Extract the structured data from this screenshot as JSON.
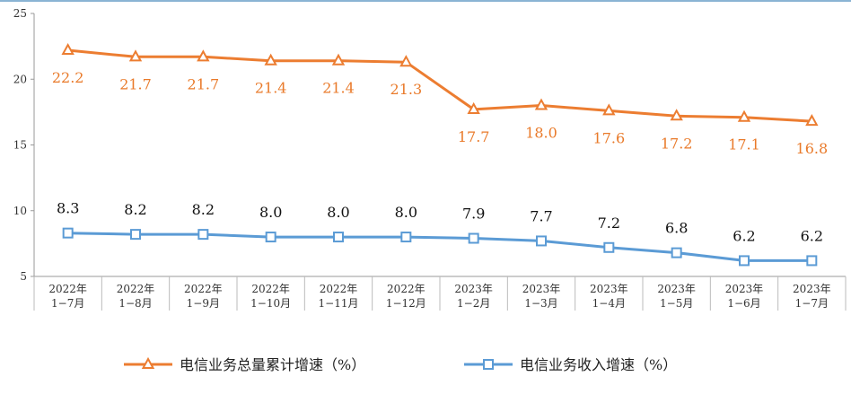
{
  "chart_data": {
    "type": "line",
    "categories": [
      [
        "2022年",
        "1−7月"
      ],
      [
        "2022年",
        "1−8月"
      ],
      [
        "2022年",
        "1−9月"
      ],
      [
        "2022年",
        "1−10月"
      ],
      [
        "2022年",
        "1−11月"
      ],
      [
        "2022年",
        "1−12月"
      ],
      [
        "2023年",
        "1−2月"
      ],
      [
        "2023年",
        "1−3月"
      ],
      [
        "2023年",
        "1−4月"
      ],
      [
        "2023年",
        "1−5月"
      ],
      [
        "2023年",
        "1−6月"
      ],
      [
        "2023年",
        "1−7月"
      ]
    ],
    "series": [
      {
        "name": "电信业务总量累计增速（%）",
        "values": [
          22.2,
          21.7,
          21.7,
          21.4,
          21.4,
          21.3,
          17.7,
          18.0,
          17.6,
          17.2,
          17.1,
          16.8
        ],
        "labels": [
          "22.2",
          "21.7",
          "21.7",
          "21.4",
          "21.4",
          "21.3",
          "17.7",
          "18.0",
          "17.6",
          "17.2",
          "17.1",
          "16.8"
        ],
        "color": "#ec7d31",
        "marker": "triangle"
      },
      {
        "name": "电信业务收入增速（%）",
        "values": [
          8.3,
          8.2,
          8.2,
          8.0,
          8.0,
          8.0,
          7.9,
          7.7,
          7.2,
          6.8,
          6.2,
          6.2
        ],
        "labels": [
          "8.3",
          "8.2",
          "8.2",
          "8.0",
          "8.0",
          "8.0",
          "7.9",
          "7.7",
          "7.2",
          "6.8",
          "6.2",
          "6.2"
        ],
        "color": "#5b9bd5",
        "marker": "square"
      }
    ],
    "yticks": [
      "5",
      "10",
      "15",
      "20",
      "25"
    ],
    "ylim": [
      5,
      25
    ],
    "grid": false,
    "legend": "bottom",
    "title": "",
    "xlabel": "",
    "ylabel": ""
  }
}
